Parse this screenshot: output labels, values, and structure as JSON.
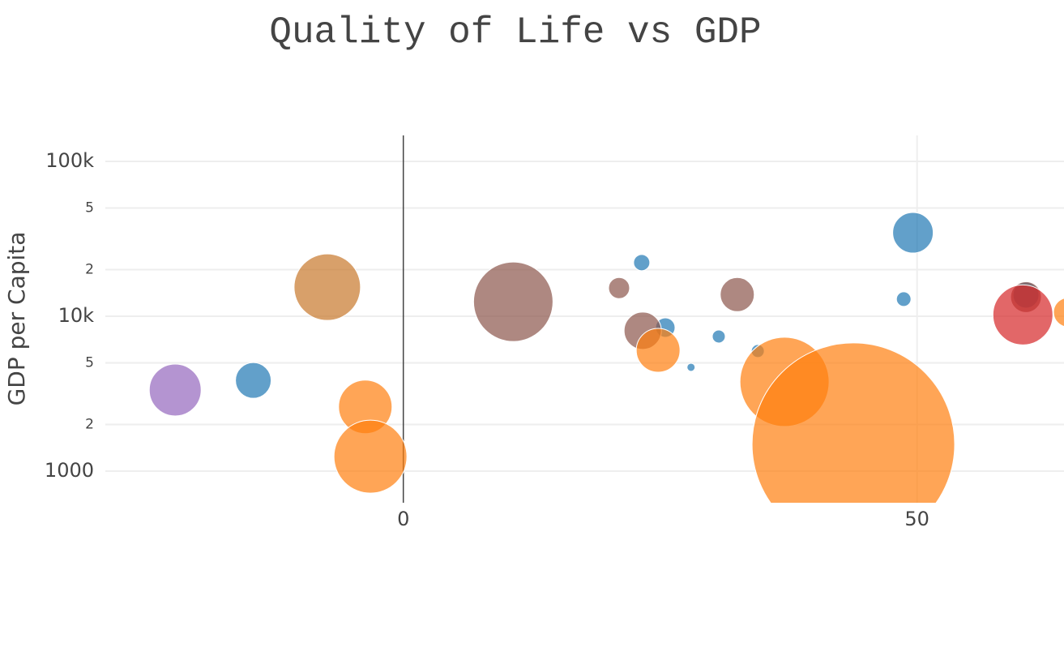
{
  "chart_data": {
    "type": "scatter",
    "title": "Quality of Life vs GDP",
    "y_label": "GDP per Capita",
    "log_y": true,
    "grid": true,
    "xlim": [
      -29,
      64.3
    ],
    "ylim": [
      625,
      147000
    ],
    "xticks": [
      0,
      50
    ],
    "yticks": [
      1000,
      {
        "value": 2000,
        "label": "2"
      },
      {
        "value": 5000,
        "label": "5"
      },
      {
        "value": 10000,
        "label": "10k"
      },
      {
        "value": 20000,
        "label": "2"
      },
      {
        "value": 50000,
        "label": "5"
      },
      {
        "value": 100000,
        "label": "100k"
      }
    ],
    "series": [
      {
        "color": "#1f77b4",
        "x": [
          -14.6,
          23.2,
          25.5,
          28.0,
          30.7,
          34.5,
          49.6,
          48.7,
          60.6
        ],
        "values": [
          3850,
          22200,
          8450,
          4680,
          7400,
          5960,
          34600,
          12900,
          13700
        ],
        "sizes": [
          44,
          20,
          24,
          10,
          16,
          16,
          50,
          18,
          32
        ]
      },
      {
        "color": "#8c564b",
        "x": [
          10.7,
          21.0,
          23.3,
          32.5,
          60.6
        ],
        "values": [
          12400,
          15200,
          8060,
          13800,
          13300
        ],
        "sizes": [
          98,
          26,
          46,
          42,
          38
        ]
      },
      {
        "color": "#c7772b",
        "x": [
          -7.4
        ],
        "values": [
          15400
        ],
        "sizes": [
          82
        ]
      },
      {
        "color": "#ff7f0e",
        "x": [
          -3.7,
          -3.2,
          24.8,
          37.1,
          43.8,
          64.7
        ],
        "values": [
          2600,
          1240,
          6030,
          3770,
          1490,
          10600
        ],
        "sizes": [
          66,
          90,
          54,
          110,
          250,
          36
        ]
      },
      {
        "color": "#9467bd",
        "x": [
          -22.2
        ],
        "values": [
          3340
        ],
        "sizes": [
          64
        ]
      },
      {
        "color": "#d62728",
        "x": [
          60.3
        ],
        "values": [
          10200
        ],
        "sizes": [
          74
        ]
      }
    ]
  }
}
